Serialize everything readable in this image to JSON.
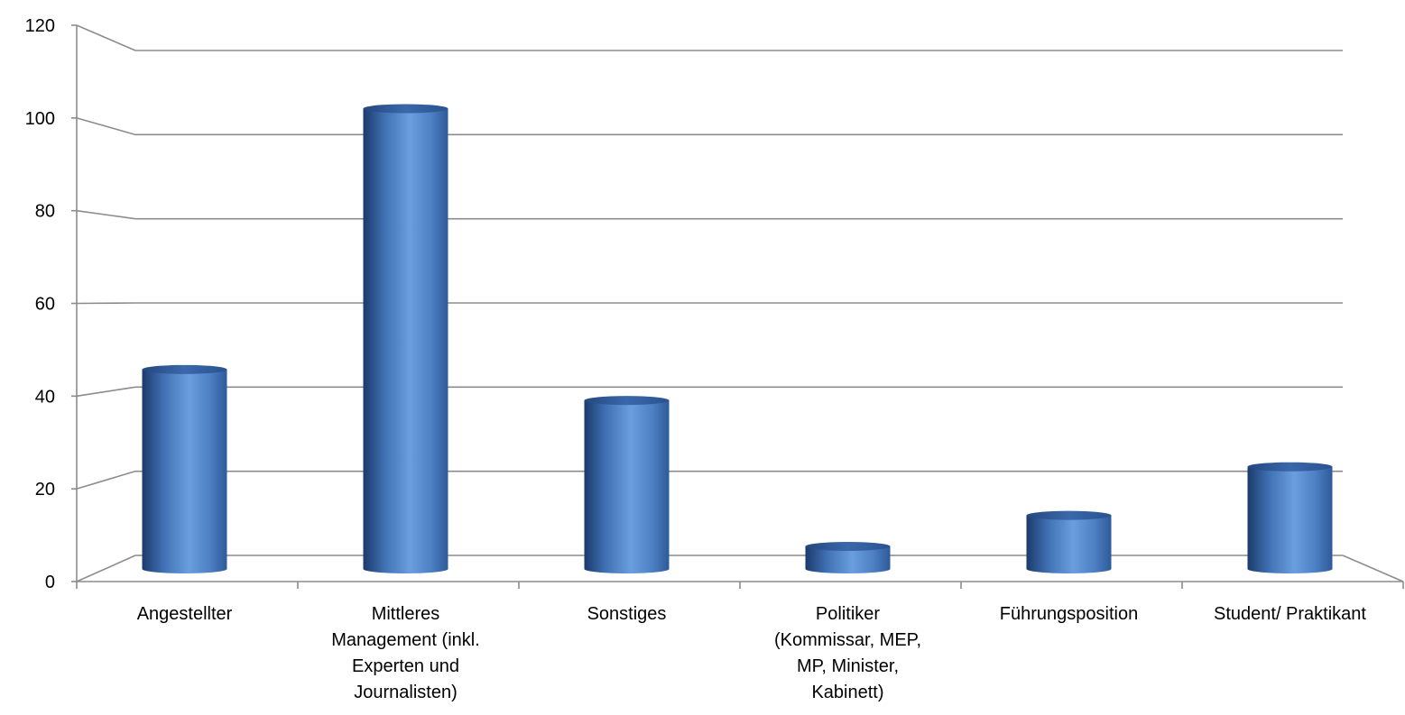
{
  "colors": {
    "grid": "#8c8c8c",
    "bar_dark": "#1c3a6b",
    "bar_mid": "#3f70b3",
    "bar_light": "#6a9ede",
    "bar_top": "#2e5a99"
  },
  "chart_data": {
    "type": "bar",
    "style": "3d-cylinder",
    "title": "",
    "xlabel": "",
    "ylabel": "",
    "ylim": [
      0,
      120
    ],
    "yticks": [
      0,
      20,
      40,
      60,
      80,
      100,
      120
    ],
    "grid": true,
    "legend": "none",
    "categories": [
      [
        "Angestellter"
      ],
      [
        "Mittleres",
        "Management (inkl.",
        "Experten und",
        "Journalisten)"
      ],
      [
        "Sonstiges"
      ],
      [
        "Politiker",
        "(Kommissar, MEP,",
        "MP, Minister,",
        "Kabinett)"
      ],
      [
        "Führungsposition"
      ],
      [
        "Student/ Praktikant"
      ]
    ],
    "values": [
      45,
      104,
      38,
      5,
      12,
      23
    ]
  }
}
